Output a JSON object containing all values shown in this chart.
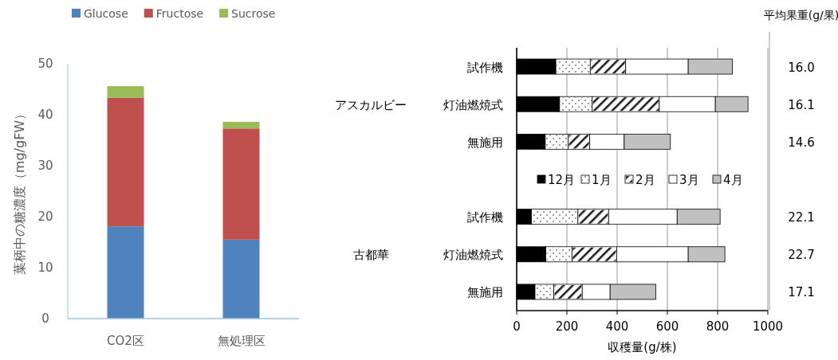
{
  "chart_data": [
    {
      "type": "bar",
      "stacked": true,
      "ylabel": "葉柄中の糖濃度（mg/gFW）",
      "categories": [
        "CO2区",
        "無処理区"
      ],
      "ylim": [
        0,
        50
      ],
      "yticks": [
        0,
        10,
        20,
        30,
        40,
        50
      ],
      "grid": false,
      "legend": "top",
      "series": [
        {
          "name": "Glucose",
          "color": "#4f81bd",
          "values": [
            18.1,
            15.5
          ]
        },
        {
          "name": "Fructose",
          "color": "#c0504d",
          "values": [
            25.2,
            21.8
          ]
        },
        {
          "name": "Sucrose",
          "color": "#9bbb59",
          "values": [
            2.3,
            1.3
          ]
        }
      ]
    },
    {
      "type": "bar",
      "orientation": "horizontal",
      "stacked": true,
      "xlabel": "収穫量(g/株)",
      "categories": [
        "試作機",
        "灯油燃焼式",
        "無施用",
        null,
        "試作機",
        "灯油燃焼式",
        "無施用"
      ],
      "xlim": [
        0,
        1000
      ],
      "xticks": [
        0,
        200,
        400,
        600,
        800,
        1000
      ],
      "grid": "x",
      "legend": "center",
      "annotations": [
        "アスカルビー",
        "古都華",
        "平均果重(g/果)",
        "16.0",
        "16.1",
        "14.6",
        "22.1",
        "22.7",
        "17.1"
      ],
      "series": [
        {
          "name": "12月",
          "color": "#000000",
          "values": [
            156,
            171,
            114,
            null,
            59,
            116,
            73
          ]
        },
        {
          "name": "1月",
          "color": "#ffffff",
          "values": [
            137,
            130,
            91,
            null,
            185,
            104,
            75
          ]
        },
        {
          "name": "2月",
          "color": "#ffffff",
          "values": [
            141,
            267,
            86,
            null,
            122,
            178,
            113
          ]
        },
        {
          "name": "3月",
          "color": "#ffffff",
          "values": [
            249,
            223,
            137,
            null,
            273,
            285,
            111
          ]
        },
        {
          "name": "4月",
          "color": "#c0c0c0",
          "values": [
            176,
            130,
            184,
            null,
            171,
            146,
            182
          ]
        }
      ]
    }
  ]
}
